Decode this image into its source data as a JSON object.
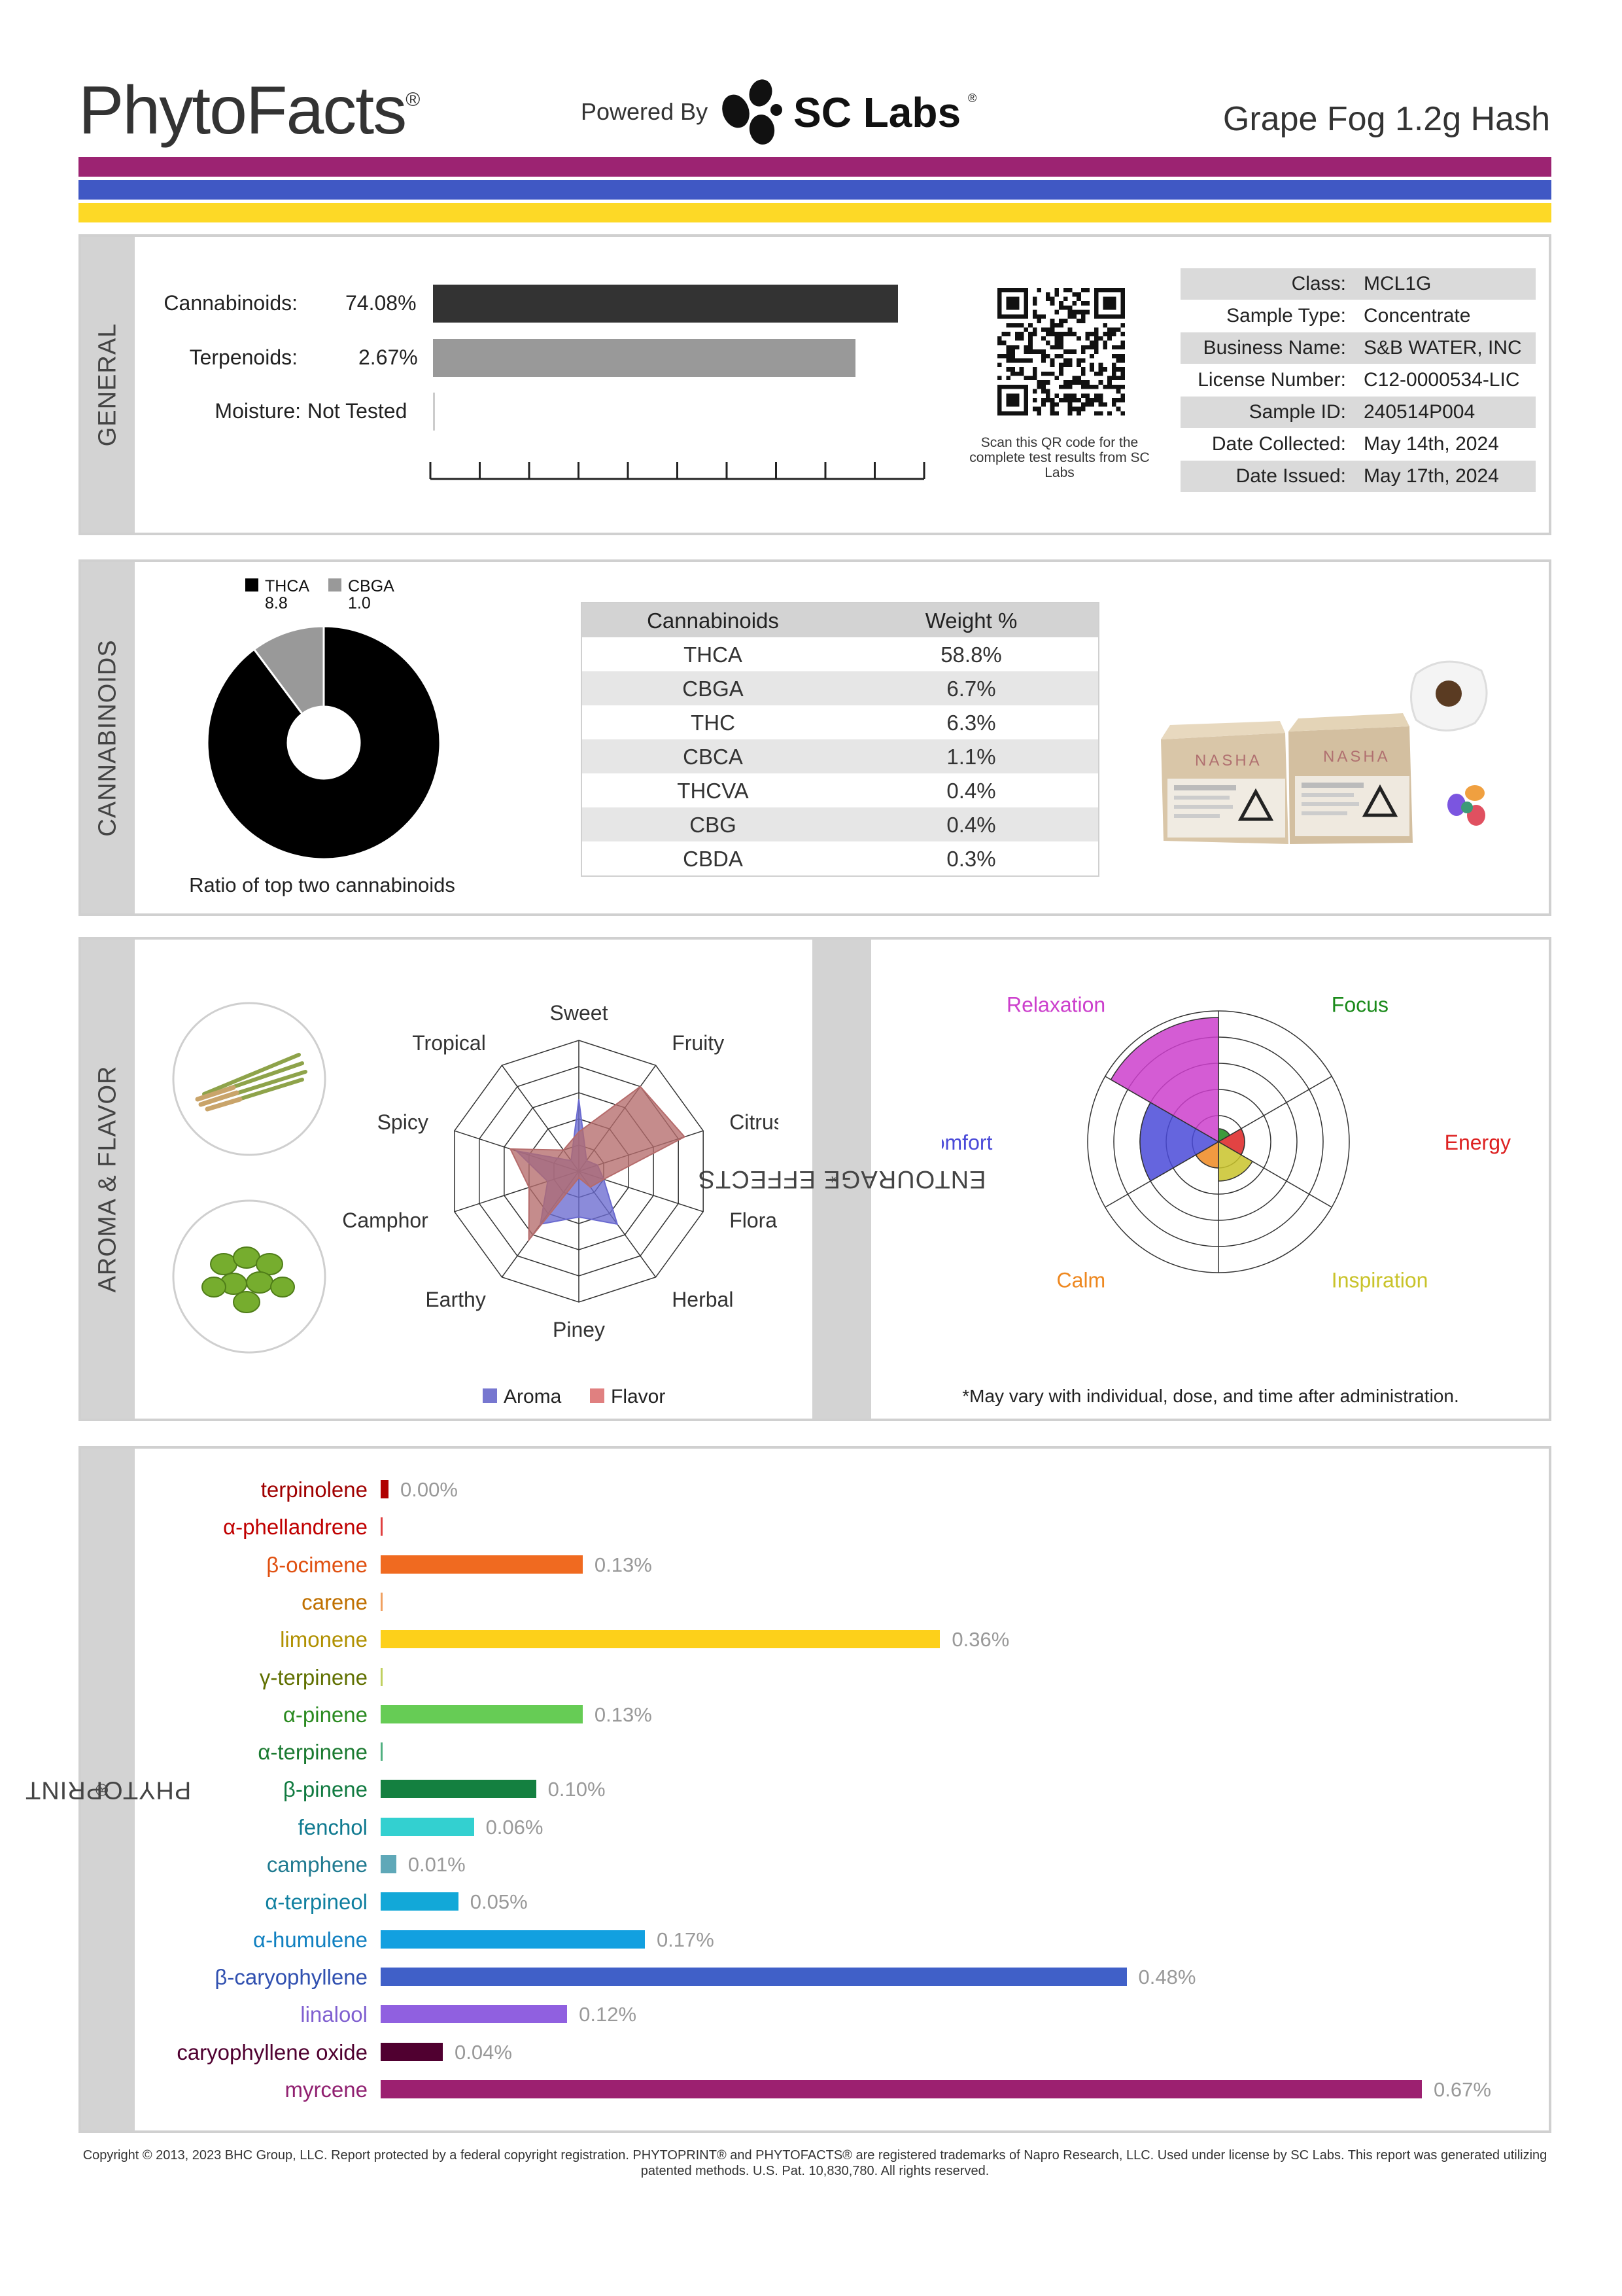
{
  "header": {
    "brand": "PhytoFacts",
    "brand_mark": "®",
    "powered_by": "Powered By",
    "lab_name": "SC Labs",
    "lab_mark": "®",
    "product_name": "Grape Fog 1.2g Hash",
    "stripe_colors": [
      "#9c2372",
      "#4058c4",
      "#fdd926"
    ]
  },
  "general": {
    "section_label": "GENERAL",
    "rows": [
      {
        "label": "Cannabinoids:",
        "value": "74.08%",
        "fraction": 0.7408,
        "color": "#333333"
      },
      {
        "label": "Terpenoids:",
        "value": "2.67%",
        "fraction": 0.6727,
        "color": "#999999"
      },
      {
        "label": "Moisture:",
        "value": "Not Tested",
        "fraction": 0,
        "color": "#cccccc"
      }
    ],
    "qr_caption": "Scan this QR code for the complete test results from SC Labs",
    "info": [
      {
        "key": "Class:",
        "value": "MCL1G"
      },
      {
        "key": "Sample Type:",
        "value": "Concentrate"
      },
      {
        "key": "Business Name:",
        "value": "S&B WATER, INC"
      },
      {
        "key": "License Number:",
        "value": "C12-0000534-LIC"
      },
      {
        "key": "Sample ID:",
        "value": "240514P004"
      },
      {
        "key": "Date Collected:",
        "value": "May 14th, 2024"
      },
      {
        "key": "Date Issued:",
        "value": "May 17th, 2024"
      }
    ]
  },
  "cannabinoids": {
    "section_label": "CANNABINOIDS",
    "ratio_caption": "Ratio of top two cannabinoids",
    "table_headers": [
      "Cannabinoids",
      "Weight %"
    ],
    "table_rows": [
      {
        "name": "THCA",
        "weight": "58.8%"
      },
      {
        "name": "CBGA",
        "weight": "6.7%"
      },
      {
        "name": "THC",
        "weight": "6.3%"
      },
      {
        "name": "CBCA",
        "weight": "1.1%"
      },
      {
        "name": "THCVA",
        "weight": "0.4%"
      },
      {
        "name": "CBG",
        "weight": "0.4%"
      },
      {
        "name": "CBDA",
        "weight": "0.3%"
      }
    ]
  },
  "aroma": {
    "section_label": "AROMA & FLAVOR",
    "legend": [
      {
        "label": "Aroma",
        "color": "#7777d0"
      },
      {
        "label": "Flavor",
        "color": "#e08080"
      }
    ]
  },
  "effects": {
    "section_label": "ENTOURAGE EFFECTS",
    "section_mark": "*",
    "disclaimer": "*May vary with individual, dose, and time after administration."
  },
  "phytoprint": {
    "section_label": "PHYTOPRINT",
    "section_mark": "®"
  },
  "footer": {
    "copyright": "Copyright © 2013, 2023 BHC Group, LLC. Report protected by a federal copyright registration. PHYTOPRINT® and PHYTOFACTS® are registered trademarks of Napro Research, LLC. Used under license by SC Labs. This report was generated utilizing patented methods. U.S. Pat. 10,830,780. All rights reserved."
  },
  "chart_data": [
    {
      "type": "pie",
      "title": "Ratio of top two cannabinoids",
      "labels": [
        "THCA",
        "CBGA"
      ],
      "value_labels": [
        "8.8",
        "1.0"
      ],
      "values": [
        8.8,
        1.0
      ],
      "colors": [
        "#000000",
        "#999999"
      ],
      "legend": "top"
    },
    {
      "type": "radar",
      "categories": [
        "Sweet",
        "Fruity",
        "Citrusy",
        "Floral",
        "Herbal",
        "Piney",
        "Earthy",
        "Camphor",
        "Spicy",
        "Tropical"
      ],
      "rmax": 1,
      "series": [
        {
          "name": "Aroma",
          "color": "#6a6ad0",
          "values": [
            0.55,
            0.1,
            0.15,
            0.2,
            0.5,
            0.35,
            0.5,
            0.25,
            0.5,
            0.1
          ]
        },
        {
          "name": "Flavor",
          "color": "#b56b6b",
          "values": [
            0.3,
            0.8,
            0.85,
            0.2,
            0.15,
            0.05,
            0.65,
            0.4,
            0.55,
            0.2
          ]
        }
      ],
      "legend": "bottom"
    },
    {
      "type": "polar-area",
      "categories": [
        "Relaxation",
        "Focus",
        "Energy",
        "Inspiration",
        "Calm",
        "Comfort"
      ],
      "colors": [
        "#cc3fcc",
        "#1a8a1a",
        "#dd2222",
        "#c9c32a",
        "#ee8820",
        "#4a4ad8"
      ],
      "values": [
        0.95,
        0.1,
        0.2,
        0.3,
        0.2,
        0.6
      ],
      "rmax": 1
    },
    {
      "type": "bar",
      "orientation": "horizontal",
      "categories": [
        "terpinolene",
        "α-phellandrene",
        "β-ocimene",
        "carene",
        "limonene",
        "γ-terpinene",
        "α-pinene",
        "α-terpinene",
        "β-pinene",
        "fenchol",
        "camphene",
        "α-terpineol",
        "α-humulene",
        "β-caryophyllene",
        "linalool",
        "caryophyllene oxide",
        "myrcene"
      ],
      "values": [
        0.0,
        0,
        0.13,
        0,
        0.36,
        0,
        0.13,
        0,
        0.1,
        0.06,
        0.01,
        0.05,
        0.17,
        0.48,
        0.12,
        0.04,
        0.67
      ],
      "value_labels": [
        "0.00%",
        "",
        "0.13%",
        "",
        "0.36%",
        "",
        "0.13%",
        "",
        "0.10%",
        "0.06%",
        "0.01%",
        "0.05%",
        "0.17%",
        "0.48%",
        "0.12%",
        "0.04%",
        "0.67%"
      ],
      "label_colors": [
        "#a00000",
        "#c00000",
        "#e05010",
        "#c07000",
        "#b09000",
        "#607000",
        "#2a8a20",
        "#1a7a30",
        "#107a40",
        "#107a90",
        "#207a90",
        "#1080a0",
        "#1080c0",
        "#3050b0",
        "#8060d0",
        "#500030",
        "#902070"
      ],
      "bar_colors": [
        "#b00000",
        "#e04040",
        "#f06a20",
        "#f0a060",
        "#fdd01a",
        "#c0d060",
        "#66cc55",
        "#50b080",
        "#148040",
        "#33d0d0",
        "#5fa8b8",
        "#12a8d8",
        "#12a0e0",
        "#4060c8",
        "#9060e0",
        "#500030",
        "#9c2070"
      ],
      "xlim": [
        0,
        0.67
      ]
    }
  ]
}
